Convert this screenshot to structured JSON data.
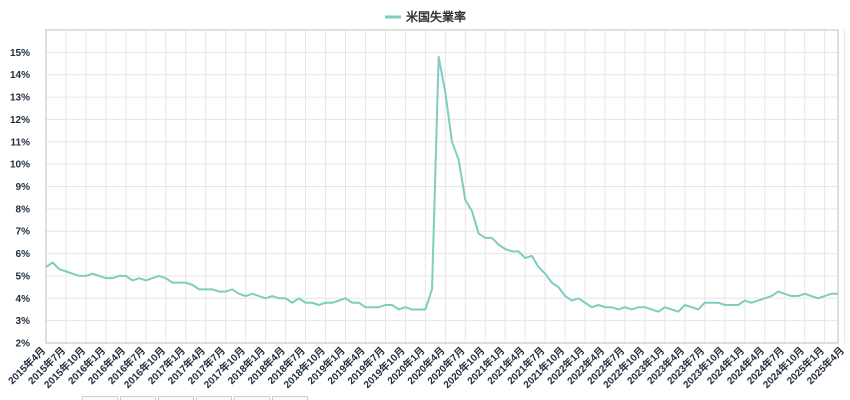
{
  "chart_data": {
    "type": "line",
    "legend_position": "top-center",
    "grid": true,
    "ylim": [
      2,
      16
    ],
    "y_tick_values": [
      2,
      3,
      4,
      5,
      6,
      7,
      8,
      9,
      10,
      11,
      12,
      13,
      14,
      15
    ],
    "y_tick_labels": [
      "2%",
      "3%",
      "4%",
      "5%",
      "6%",
      "7%",
      "8%",
      "9%",
      "10%",
      "11%",
      "12%",
      "13%",
      "14%",
      "15%"
    ],
    "x_tick_labels": [
      "2015年4月",
      "2015年7月",
      "2015年10月",
      "2016年1月",
      "2016年4月",
      "2016年7月",
      "2016年10月",
      "2017年1月",
      "2017年4月",
      "2017年7月",
      "2017年10月",
      "2018年1月",
      "2018年4月",
      "2018年7月",
      "2018年10月",
      "2019年1月",
      "2019年4月",
      "2019年7月",
      "2019年10月",
      "2020年1月",
      "2020年4月",
      "2020年7月",
      "2020年10月",
      "2021年1月",
      "2021年4月",
      "2021年7月",
      "2021年10月",
      "2022年1月",
      "2022年4月",
      "2022年7月",
      "2022年10月",
      "2023年1月",
      "2023年4月",
      "2023年7月",
      "2023年10月",
      "2024年1月",
      "2024年4月",
      "2024年7月",
      "2024年10月",
      "2025年1月",
      "2025年4月"
    ],
    "x_tick_every_months": 3,
    "series": [
      {
        "name": "米国失業率",
        "color": "#7ecdc0",
        "values": [
          5.4,
          5.6,
          5.3,
          5.2,
          5.1,
          5.0,
          5.0,
          5.1,
          5.0,
          4.9,
          4.9,
          5.0,
          5.0,
          4.8,
          4.9,
          4.8,
          4.9,
          5.0,
          4.9,
          4.7,
          4.7,
          4.7,
          4.6,
          4.4,
          4.4,
          4.4,
          4.3,
          4.3,
          4.4,
          4.2,
          4.1,
          4.2,
          4.1,
          4.0,
          4.1,
          4.0,
          4.0,
          3.8,
          4.0,
          3.8,
          3.8,
          3.7,
          3.8,
          3.8,
          3.9,
          4.0,
          3.8,
          3.8,
          3.6,
          3.6,
          3.6,
          3.7,
          3.7,
          3.5,
          3.6,
          3.5,
          3.5,
          3.5,
          4.4,
          14.8,
          13.2,
          11.0,
          10.2,
          8.4,
          7.9,
          6.9,
          6.7,
          6.7,
          6.4,
          6.2,
          6.1,
          6.1,
          5.8,
          5.9,
          5.4,
          5.1,
          4.7,
          4.5,
          4.1,
          3.9,
          4.0,
          3.8,
          3.6,
          3.7,
          3.6,
          3.6,
          3.5,
          3.6,
          3.5,
          3.6,
          3.6,
          3.5,
          3.4,
          3.6,
          3.5,
          3.4,
          3.7,
          3.6,
          3.5,
          3.8,
          3.8,
          3.8,
          3.7,
          3.7,
          3.7,
          3.9,
          3.8,
          3.9,
          4.0,
          4.1,
          4.3,
          4.2,
          4.1,
          4.1,
          4.2,
          4.1,
          4.0,
          4.1,
          4.2,
          4.2
        ]
      }
    ]
  }
}
